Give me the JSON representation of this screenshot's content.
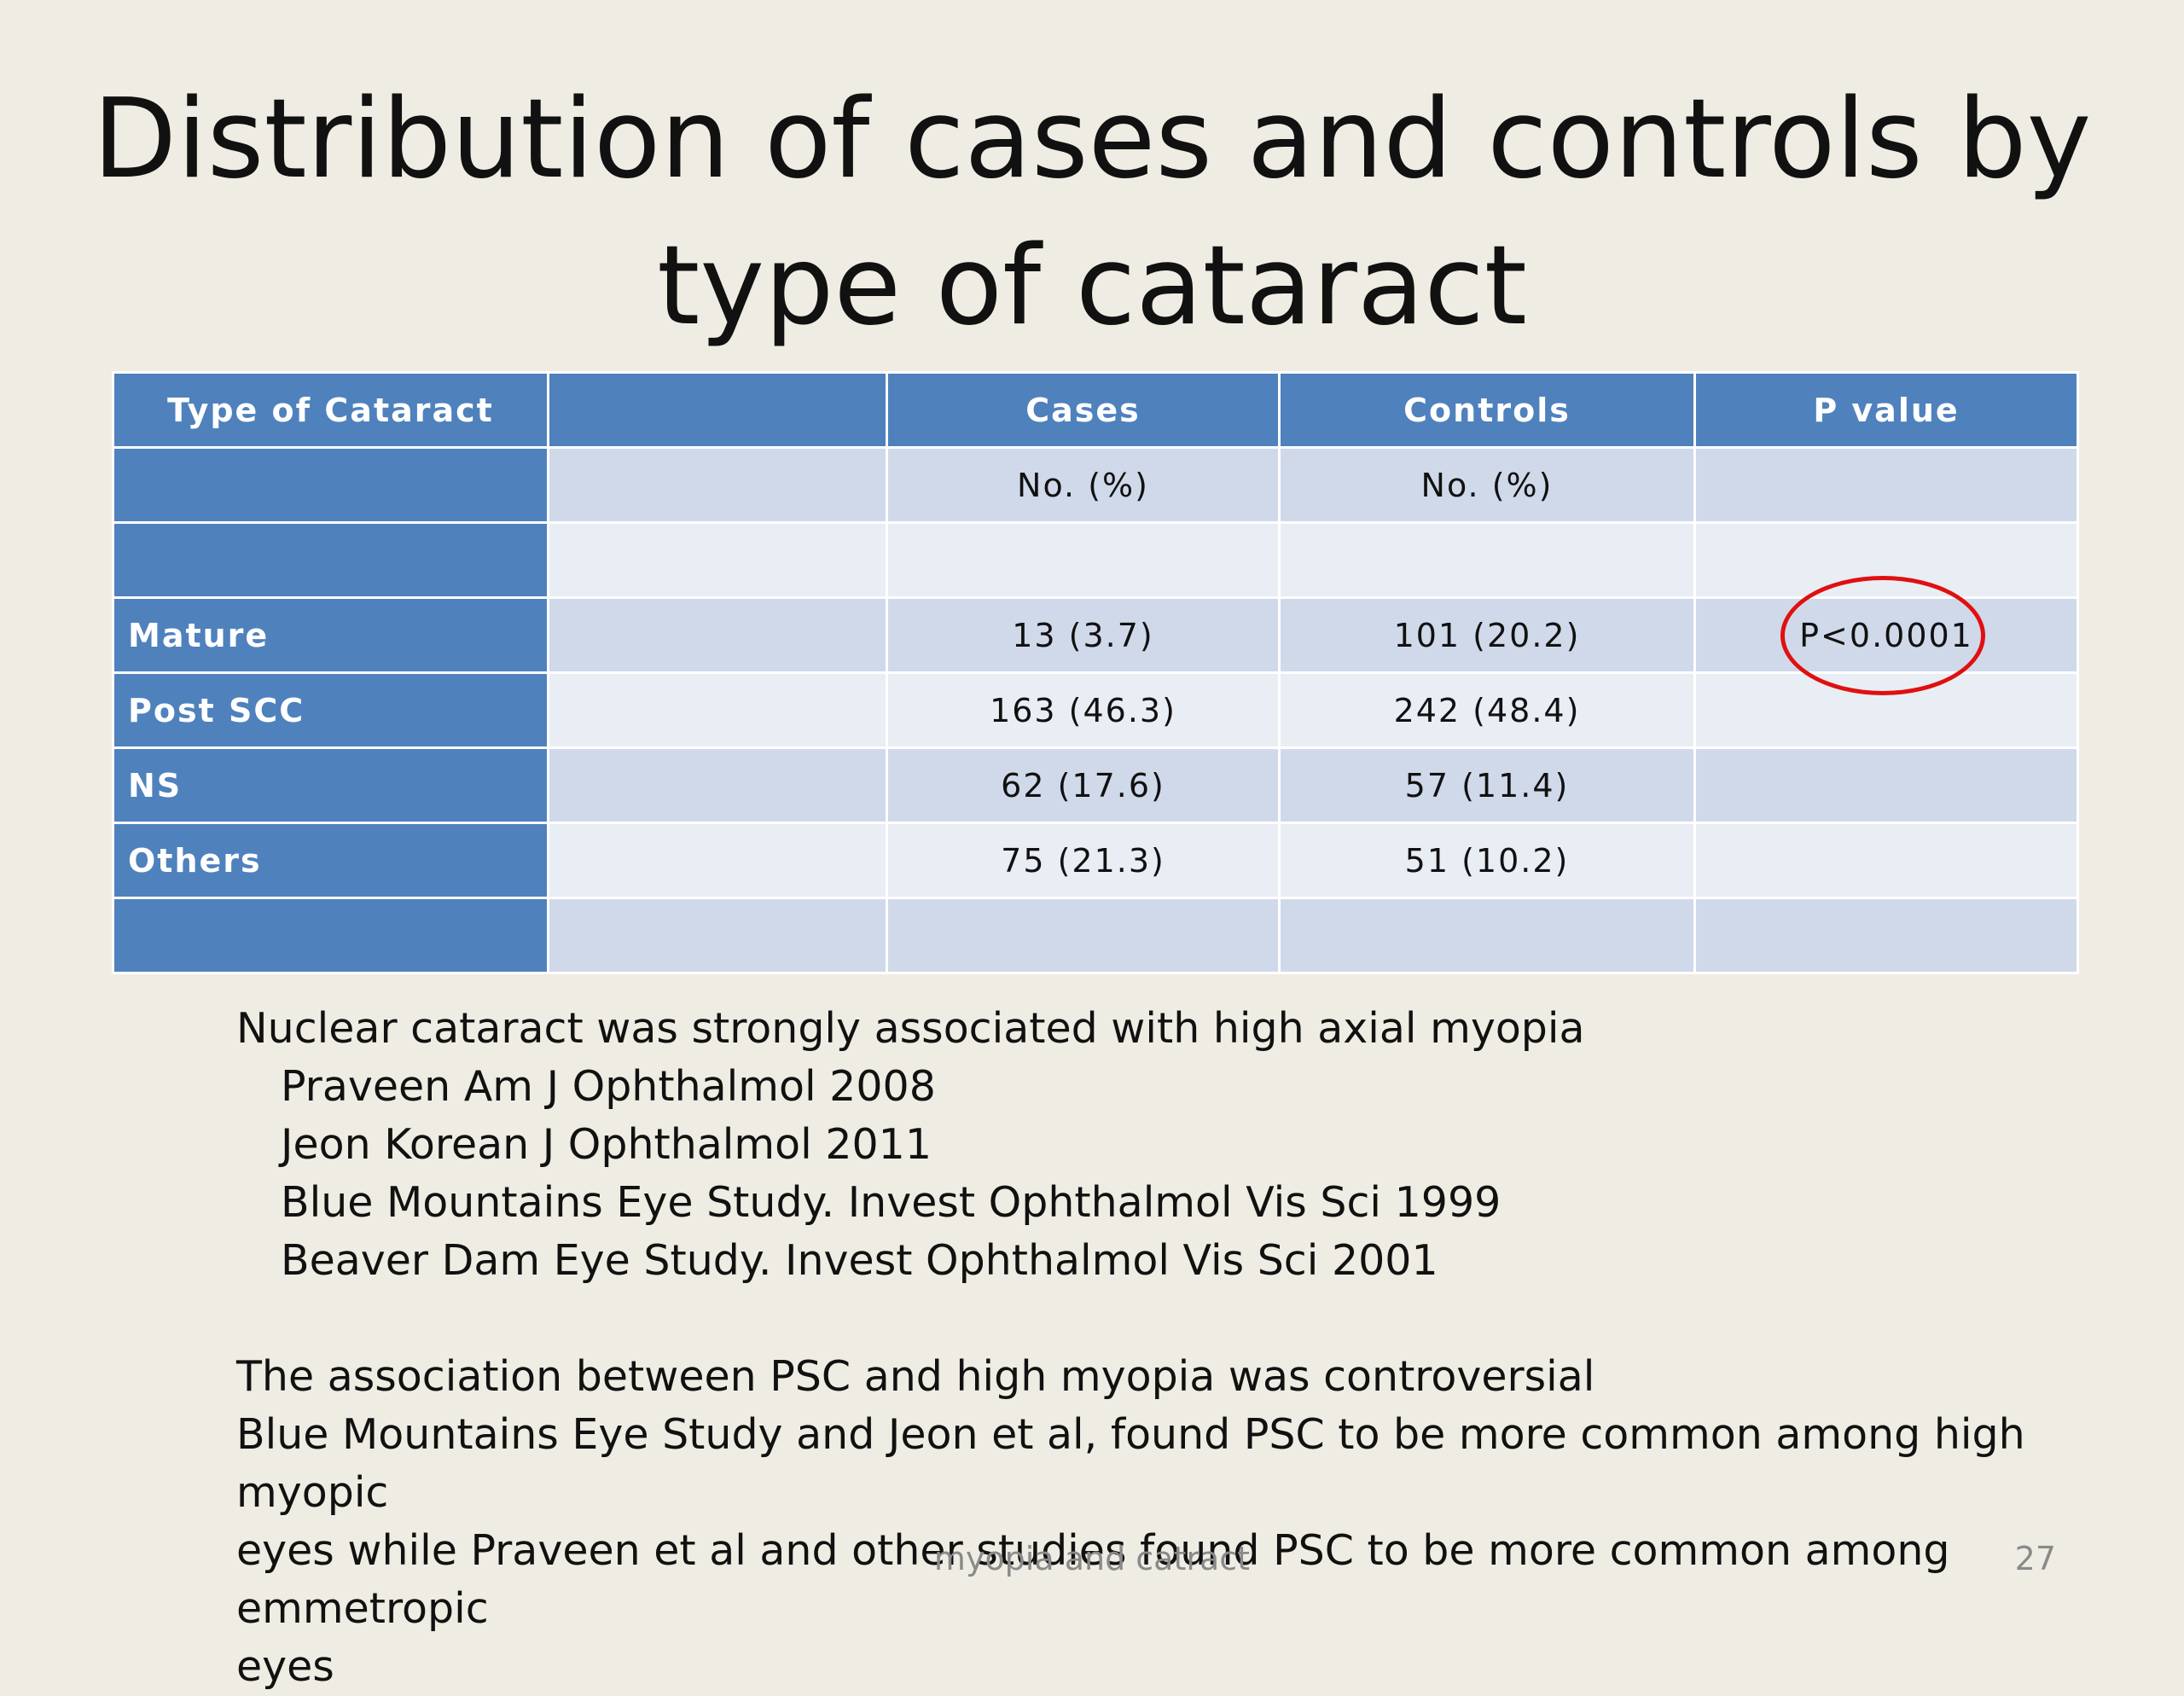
{
  "title": {
    "line1": "Distribution of cases and controls by",
    "line2": "type of cataract"
  },
  "table": {
    "headers": [
      "Type of Cataract",
      "",
      "Cases",
      "Controls",
      "P value"
    ],
    "subheader": [
      "",
      "",
      "No. (%)",
      "No. (%)",
      ""
    ],
    "rows": [
      {
        "type": "Mature",
        "cases": "13 (3.7)",
        "controls": "101 (20.2)",
        "p": "P<0.0001"
      },
      {
        "type": "Post SCC",
        "cases": "163 (46.3)",
        "controls": "242 (48.4)",
        "p": ""
      },
      {
        "type": "NS",
        "cases": "62 (17.6)",
        "controls": "57 (11.4)",
        "p": ""
      },
      {
        "type": "Others",
        "cases": "75 (21.3)",
        "controls": "51 (10.2)",
        "p": ""
      }
    ],
    "header_color": "#4f81bd",
    "highlight_color": "#e01010"
  },
  "notes": {
    "line1": "Nuclear cataract was strongly associated with high axial myopia",
    "refs": [
      "Praveen  Am J Ophthalmol 2008",
      "Jeon Korean J Ophthalmol 2011",
      "Blue Mountains Eye Study. Invest Ophthalmol Vis Sci 1999",
      "Beaver Dam Eye Study. Invest Ophthalmol Vis Sci 2001"
    ],
    "line2": "The association between PSC and high myopia was controversial",
    "line3": "Blue Mountains Eye Study and Jeon et al, found PSC to be more common among high myopic",
    "line4": "eyes while Praveen et al and other studies found PSC to be more common among emmetropic",
    "line5": "eyes"
  },
  "footer": {
    "text": "myopia and catract",
    "page": "27"
  }
}
